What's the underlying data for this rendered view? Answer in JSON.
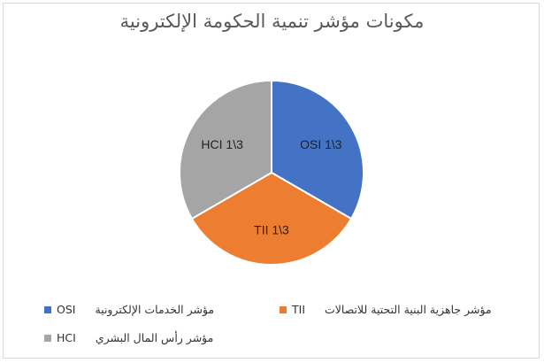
{
  "chart_data": {
    "type": "pie",
    "title": "مكونات مؤشر تنمية الحكومة الإلكترونية",
    "slices": [
      {
        "label": "OSI 1\\3",
        "value": 0.3333,
        "color": "#4472c4"
      },
      {
        "label": "TII 1\\3",
        "value": 0.3333,
        "color": "#ed7d31"
      },
      {
        "label": "HCI 1\\3",
        "value": 0.3333,
        "color": "#a5a5a5"
      }
    ],
    "legend": [
      {
        "code": "OSI",
        "text": "مؤشر الخدمات الإلكترونية",
        "color": "#4472c4"
      },
      {
        "code": "TII",
        "text": "مؤشر جاهزية البنية التحتية للاتصالات",
        "color": "#ed7d31"
      },
      {
        "code": "HCI",
        "text": "مؤشر رأس المال البشري",
        "color": "#a5a5a5"
      }
    ],
    "legend_position": "bottom"
  }
}
